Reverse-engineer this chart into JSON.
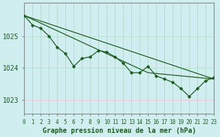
{
  "title": "Graphe pression niveau de la mer (hPa)",
  "background_color": "#d0eef0",
  "grid_color_h": "#e8c8c8",
  "grid_color_v": "#b8d8d0",
  "line_color": "#1a5c1a",
  "xlim": [
    0,
    23
  ],
  "ylim": [
    1022.55,
    1026.05
  ],
  "yticks": [
    1023,
    1024,
    1025
  ],
  "xticks": [
    0,
    1,
    2,
    3,
    4,
    5,
    6,
    7,
    8,
    9,
    10,
    11,
    12,
    13,
    14,
    15,
    16,
    17,
    18,
    19,
    20,
    21,
    22,
    23
  ],
  "series_jagged": [
    1025.65,
    1025.35,
    1025.25,
    1025.0,
    1024.65,
    1024.45,
    1024.05,
    1024.3,
    1024.35,
    1024.55,
    1024.5,
    1024.35,
    1024.15,
    1023.85,
    1023.85,
    1024.05,
    1023.75,
    1023.65,
    1023.55,
    1023.35,
    1023.1,
    1023.35,
    1023.6,
    1023.7
  ],
  "trend1_x": [
    0,
    23
  ],
  "trend1_y": [
    1025.65,
    1023.65
  ],
  "trend2_x": [
    0,
    15,
    23
  ],
  "trend2_y": [
    1025.65,
    1023.85,
    1023.65
  ],
  "markersize": 2.5,
  "linewidth": 0.9,
  "xlabel_fontsize": 7,
  "ytick_fontsize": 7,
  "xtick_fontsize": 5.5
}
